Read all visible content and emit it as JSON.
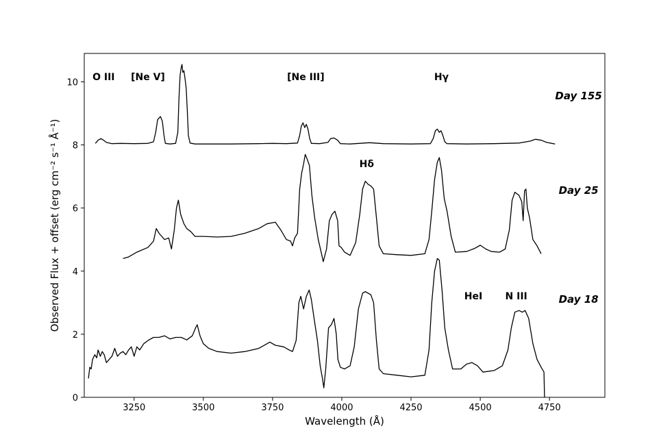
{
  "chart_data": {
    "type": "line",
    "title": "",
    "xlabel": "Wavelength (Å)",
    "ylabel": "Observed Flux + offset (erg cm⁻² s⁻¹ Å⁻¹)",
    "xlim": [
      3070,
      4950
    ],
    "ylim": [
      0,
      10.9
    ],
    "x_ticks": [
      3250,
      3500,
      3750,
      4000,
      4250,
      4500,
      4750
    ],
    "y_ticks": [
      0,
      2,
      4,
      6,
      8,
      10
    ],
    "grid": false,
    "line_color": "#000000",
    "annotations": [
      {
        "text": "O III",
        "x": 3140,
        "y": 10.05
      },
      {
        "text": "[Ne V]",
        "x": 3300,
        "y": 10.05
      },
      {
        "text": "[Ne III]",
        "x": 3870,
        "y": 10.05
      },
      {
        "text": "Hγ",
        "x": 4360,
        "y": 10.05
      },
      {
        "text": "Hδ",
        "x": 4090,
        "y": 7.3
      },
      {
        "text": "HeI",
        "x": 4475,
        "y": 3.1
      },
      {
        "text": "N III",
        "x": 4630,
        "y": 3.1
      }
    ],
    "series": [
      {
        "name": "Day 155",
        "label_at": {
          "x": 4855,
          "y": 9.45
        },
        "points": [
          [
            3110,
            8.05
          ],
          [
            3120,
            8.15
          ],
          [
            3130,
            8.2
          ],
          [
            3140,
            8.15
          ],
          [
            3150,
            8.08
          ],
          [
            3170,
            8.04
          ],
          [
            3200,
            8.05
          ],
          [
            3250,
            8.04
          ],
          [
            3300,
            8.05
          ],
          [
            3320,
            8.1
          ],
          [
            3328,
            8.4
          ],
          [
            3335,
            8.8
          ],
          [
            3340,
            8.85
          ],
          [
            3345,
            8.9
          ],
          [
            3352,
            8.75
          ],
          [
            3358,
            8.3
          ],
          [
            3363,
            8.05
          ],
          [
            3380,
            8.03
          ],
          [
            3400,
            8.05
          ],
          [
            3408,
            8.4
          ],
          [
            3412,
            9.5
          ],
          [
            3416,
            10.2
          ],
          [
            3420,
            10.45
          ],
          [
            3423,
            10.55
          ],
          [
            3426,
            10.3
          ],
          [
            3430,
            10.35
          ],
          [
            3434,
            10.1
          ],
          [
            3438,
            9.8
          ],
          [
            3442,
            9.1
          ],
          [
            3446,
            8.3
          ],
          [
            3452,
            8.06
          ],
          [
            3470,
            8.03
          ],
          [
            3500,
            8.03
          ],
          [
            3600,
            8.03
          ],
          [
            3700,
            8.04
          ],
          [
            3750,
            8.05
          ],
          [
            3800,
            8.04
          ],
          [
            3840,
            8.06
          ],
          [
            3848,
            8.3
          ],
          [
            3854,
            8.6
          ],
          [
            3860,
            8.7
          ],
          [
            3866,
            8.55
          ],
          [
            3872,
            8.65
          ],
          [
            3878,
            8.5
          ],
          [
            3884,
            8.2
          ],
          [
            3890,
            8.05
          ],
          [
            3920,
            8.04
          ],
          [
            3950,
            8.08
          ],
          [
            3960,
            8.2
          ],
          [
            3972,
            8.22
          ],
          [
            3985,
            8.15
          ],
          [
            3995,
            8.04
          ],
          [
            4030,
            8.03
          ],
          [
            4100,
            8.07
          ],
          [
            4150,
            8.04
          ],
          [
            4250,
            8.03
          ],
          [
            4320,
            8.04
          ],
          [
            4330,
            8.2
          ],
          [
            4338,
            8.45
          ],
          [
            4345,
            8.5
          ],
          [
            4352,
            8.4
          ],
          [
            4358,
            8.45
          ],
          [
            4365,
            8.3
          ],
          [
            4372,
            8.1
          ],
          [
            4380,
            8.04
          ],
          [
            4450,
            8.03
          ],
          [
            4550,
            8.04
          ],
          [
            4640,
            8.06
          ],
          [
            4680,
            8.12
          ],
          [
            4700,
            8.18
          ],
          [
            4720,
            8.15
          ],
          [
            4740,
            8.08
          ],
          [
            4770,
            8.03
          ]
        ]
      },
      {
        "name": "Day 25",
        "label_at": {
          "x": 4855,
          "y": 6.45
        },
        "points": [
          [
            3210,
            4.4
          ],
          [
            3230,
            4.45
          ],
          [
            3260,
            4.6
          ],
          [
            3300,
            4.75
          ],
          [
            3320,
            4.95
          ],
          [
            3330,
            5.35
          ],
          [
            3340,
            5.2
          ],
          [
            3360,
            5.0
          ],
          [
            3375,
            5.05
          ],
          [
            3385,
            4.7
          ],
          [
            3395,
            5.3
          ],
          [
            3403,
            6.0
          ],
          [
            3410,
            6.25
          ],
          [
            3418,
            5.8
          ],
          [
            3430,
            5.5
          ],
          [
            3440,
            5.35
          ],
          [
            3455,
            5.25
          ],
          [
            3470,
            5.1
          ],
          [
            3500,
            5.1
          ],
          [
            3550,
            5.08
          ],
          [
            3600,
            5.1
          ],
          [
            3650,
            5.2
          ],
          [
            3700,
            5.35
          ],
          [
            3730,
            5.5
          ],
          [
            3760,
            5.55
          ],
          [
            3780,
            5.3
          ],
          [
            3800,
            5.0
          ],
          [
            3815,
            4.95
          ],
          [
            3822,
            4.8
          ],
          [
            3830,
            5.05
          ],
          [
            3840,
            5.2
          ],
          [
            3848,
            6.6
          ],
          [
            3855,
            7.1
          ],
          [
            3862,
            7.4
          ],
          [
            3868,
            7.7
          ],
          [
            3875,
            7.55
          ],
          [
            3883,
            7.35
          ],
          [
            3892,
            6.4
          ],
          [
            3902,
            5.7
          ],
          [
            3915,
            5.0
          ],
          [
            3928,
            4.5
          ],
          [
            3933,
            4.3
          ],
          [
            3945,
            4.7
          ],
          [
            3955,
            5.6
          ],
          [
            3965,
            5.8
          ],
          [
            3975,
            5.9
          ],
          [
            3985,
            5.6
          ],
          [
            3990,
            4.8
          ],
          [
            3998,
            4.75
          ],
          [
            4010,
            4.6
          ],
          [
            4030,
            4.5
          ],
          [
            4050,
            4.9
          ],
          [
            4065,
            5.8
          ],
          [
            4075,
            6.6
          ],
          [
            4085,
            6.85
          ],
          [
            4095,
            6.75
          ],
          [
            4105,
            6.7
          ],
          [
            4115,
            6.6
          ],
          [
            4125,
            5.7
          ],
          [
            4135,
            4.8
          ],
          [
            4150,
            4.55
          ],
          [
            4200,
            4.52
          ],
          [
            4250,
            4.5
          ],
          [
            4300,
            4.55
          ],
          [
            4315,
            5.0
          ],
          [
            4325,
            5.9
          ],
          [
            4335,
            6.9
          ],
          [
            4345,
            7.45
          ],
          [
            4352,
            7.6
          ],
          [
            4360,
            7.2
          ],
          [
            4370,
            6.3
          ],
          [
            4380,
            5.9
          ],
          [
            4395,
            5.1
          ],
          [
            4410,
            4.6
          ],
          [
            4450,
            4.62
          ],
          [
            4480,
            4.72
          ],
          [
            4500,
            4.82
          ],
          [
            4520,
            4.7
          ],
          [
            4540,
            4.62
          ],
          [
            4570,
            4.6
          ],
          [
            4590,
            4.7
          ],
          [
            4605,
            5.3
          ],
          [
            4615,
            6.25
          ],
          [
            4625,
            6.5
          ],
          [
            4640,
            6.4
          ],
          [
            4650,
            6.2
          ],
          [
            4655,
            5.6
          ],
          [
            4660,
            6.55
          ],
          [
            4665,
            6.6
          ],
          [
            4670,
            6.0
          ],
          [
            4678,
            5.7
          ],
          [
            4690,
            5.0
          ],
          [
            4705,
            4.8
          ],
          [
            4720,
            4.55
          ]
        ]
      },
      {
        "name": "Day 18",
        "label_at": {
          "x": 4855,
          "y": 3.0
        },
        "points": [
          [
            3085,
            0.6
          ],
          [
            3090,
            0.95
          ],
          [
            3095,
            0.9
          ],
          [
            3100,
            1.2
          ],
          [
            3108,
            1.35
          ],
          [
            3115,
            1.25
          ],
          [
            3120,
            1.5
          ],
          [
            3128,
            1.3
          ],
          [
            3135,
            1.45
          ],
          [
            3142,
            1.35
          ],
          [
            3150,
            1.1
          ],
          [
            3160,
            1.2
          ],
          [
            3170,
            1.3
          ],
          [
            3180,
            1.55
          ],
          [
            3190,
            1.3
          ],
          [
            3200,
            1.4
          ],
          [
            3210,
            1.45
          ],
          [
            3220,
            1.35
          ],
          [
            3230,
            1.5
          ],
          [
            3240,
            1.6
          ],
          [
            3250,
            1.3
          ],
          [
            3260,
            1.6
          ],
          [
            3270,
            1.5
          ],
          [
            3285,
            1.7
          ],
          [
            3300,
            1.8
          ],
          [
            3320,
            1.9
          ],
          [
            3340,
            1.9
          ],
          [
            3360,
            1.95
          ],
          [
            3380,
            1.85
          ],
          [
            3400,
            1.9
          ],
          [
            3420,
            1.9
          ],
          [
            3440,
            1.82
          ],
          [
            3460,
            1.95
          ],
          [
            3472,
            2.2
          ],
          [
            3478,
            2.3
          ],
          [
            3488,
            1.95
          ],
          [
            3500,
            1.7
          ],
          [
            3520,
            1.55
          ],
          [
            3550,
            1.45
          ],
          [
            3600,
            1.4
          ],
          [
            3650,
            1.45
          ],
          [
            3700,
            1.55
          ],
          [
            3740,
            1.75
          ],
          [
            3760,
            1.65
          ],
          [
            3790,
            1.6
          ],
          [
            3810,
            1.5
          ],
          [
            3822,
            1.45
          ],
          [
            3835,
            1.8
          ],
          [
            3845,
            3.0
          ],
          [
            3852,
            3.2
          ],
          [
            3862,
            2.8
          ],
          [
            3872,
            3.2
          ],
          [
            3882,
            3.4
          ],
          [
            3890,
            3.1
          ],
          [
            3900,
            2.5
          ],
          [
            3912,
            1.8
          ],
          [
            3922,
            1.0
          ],
          [
            3930,
            0.6
          ],
          [
            3935,
            0.3
          ],
          [
            3942,
            0.9
          ],
          [
            3952,
            2.2
          ],
          [
            3962,
            2.3
          ],
          [
            3972,
            2.5
          ],
          [
            3980,
            2.0
          ],
          [
            3986,
            1.2
          ],
          [
            3995,
            0.95
          ],
          [
            4010,
            0.9
          ],
          [
            4030,
            1.0
          ],
          [
            4045,
            1.6
          ],
          [
            4060,
            2.8
          ],
          [
            4075,
            3.3
          ],
          [
            4085,
            3.35
          ],
          [
            4095,
            3.3
          ],
          [
            4105,
            3.25
          ],
          [
            4115,
            3.0
          ],
          [
            4125,
            1.8
          ],
          [
            4135,
            0.9
          ],
          [
            4150,
            0.75
          ],
          [
            4200,
            0.7
          ],
          [
            4250,
            0.65
          ],
          [
            4300,
            0.7
          ],
          [
            4315,
            1.5
          ],
          [
            4325,
            3.0
          ],
          [
            4335,
            4.0
          ],
          [
            4345,
            4.4
          ],
          [
            4352,
            4.35
          ],
          [
            4362,
            3.4
          ],
          [
            4372,
            2.2
          ],
          [
            4385,
            1.5
          ],
          [
            4400,
            0.9
          ],
          [
            4430,
            0.9
          ],
          [
            4450,
            1.05
          ],
          [
            4470,
            1.1
          ],
          [
            4490,
            1.0
          ],
          [
            4510,
            0.8
          ],
          [
            4550,
            0.85
          ],
          [
            4580,
            1.0
          ],
          [
            4600,
            1.5
          ],
          [
            4612,
            2.2
          ],
          [
            4625,
            2.7
          ],
          [
            4640,
            2.75
          ],
          [
            4652,
            2.7
          ],
          [
            4662,
            2.75
          ],
          [
            4675,
            2.5
          ],
          [
            4690,
            1.7
          ],
          [
            4705,
            1.2
          ],
          [
            4720,
            0.95
          ],
          [
            4730,
            0.8
          ],
          [
            4732,
            0.0
          ]
        ]
      }
    ]
  }
}
